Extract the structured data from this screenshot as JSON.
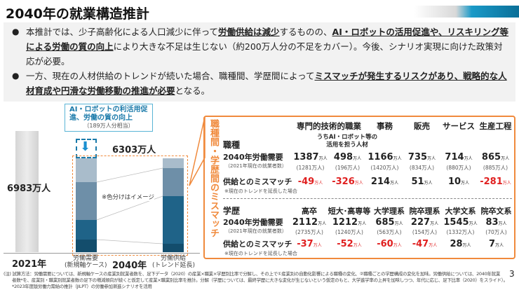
{
  "title": "2040年の就業構造推計",
  "bullets": [
    {
      "parts": [
        {
          "t": "本推計では、少子高齢化による人口減少に伴って"
        },
        {
          "t": "労働供給は減少",
          "b": true
        },
        {
          "t": "するものの、"
        },
        {
          "t": "AI・ロボットの活用促進や、リスキリング等による労働の質の向上",
          "b": true
        },
        {
          "t": "により大きな不足は生じない（約200万人分の不足をカバー）。今後、シナリオ実現に向けた政策対応が必要。"
        }
      ]
    },
    {
      "parts": [
        {
          "t": "一方、現在の人材供給のトレンドが続いた場合、職種間、学歴間によって"
        },
        {
          "t": "ミスマッチが発生するリスクがあり、戦略的な人材育成や円滑な労働移動の推進が必要",
          "b": true
        },
        {
          "t": "となる。"
        }
      ]
    }
  ],
  "chart": {
    "bar2021_label": "6983万人",
    "year2021": "2021年",
    "year2040": "2040年",
    "total2040": "6303万人",
    "callout_title": "AI・ロボットの利活用促進、労働の質の向上",
    "callout_sub": "（189万人分相当）",
    "color_note": "※色分けはイメージ",
    "demand_label": "労働需要",
    "demand_sub": "(新規軸ケース)",
    "supply_label": "労働供給",
    "supply_sub": "(トレンド延長)"
  },
  "mismatch": {
    "side_label": "職種間・学歴間のミスマッチ",
    "unit": "万人",
    "occupation": {
      "label": "職種",
      "columns": [
        "専門的技術的職業",
        "事務",
        "販売",
        "サービス",
        "生産工程"
      ],
      "sub_column": "うちAI・ロボット等の活用を担う人材",
      "demand_label": "2040年労働需要",
      "demand_note": "（2021年現在の就業者数）",
      "demand": [
        "1387",
        "498",
        "1166",
        "735",
        "714",
        "865"
      ],
      "current": [
        "(1281万人)",
        "(196万人)",
        "(1420万人)",
        "(834万人)",
        "(880万人)",
        "(885万人)"
      ],
      "gap_label": "供給とのミスマッチ",
      "gap_note": "※現在のトレンドを延長した場合",
      "gap": [
        "-49",
        "-326",
        "214",
        "51",
        "10",
        "-281"
      ]
    },
    "education": {
      "label": "学歴",
      "columns": [
        "高卒",
        "短大･高専等",
        "大学理系",
        "院卒理系",
        "大学文系",
        "院卒文系"
      ],
      "demand_label": "2040年労働需要",
      "demand_note": "（2021年現在の就業者数）",
      "demand": [
        "2112",
        "1212",
        "685",
        "227",
        "1545",
        "83"
      ],
      "current": [
        "(2735万人)",
        "(1240万人)",
        "(563万人)",
        "(154万人)",
        "(1332万人)",
        "(70万人)"
      ],
      "gap_label": "供給とのミスマッチ",
      "gap_note": "※現在のトレンドを延長した場合",
      "gap": [
        "-37",
        "-52",
        "-60",
        "-47",
        "28",
        "7"
      ]
    }
  },
  "footnote": [
    "(注) 試算方法：労働需要については、新規軸ケースの産業別就業者数を、足下データ（2020）の産業×職業×学歴別比率で分解し、その上で①産業別の自動化影響による職種の変化、②職種ごとの学歴構成の変化を加味。労働供給については、2040年就業",
    "者数*を、産業別・職業別就業者数の足下の増減傾向が続くと仮定して産業×職業別比率を推計。分解（学歴については、最終学歴に大きな変化が生じないという仮定のもと、大学進学率の上昇を加味しつつ、年代に応じ、足下比率（2020）をスライド）。",
    "*2023年度版労働力需給の推計（JILPT）の労働参加漸進シナリオを活用"
  ],
  "page_number": "3",
  "colors": {
    "orange": "#f08a3c",
    "red": "#e02020",
    "blue": "#1a8fd0"
  }
}
